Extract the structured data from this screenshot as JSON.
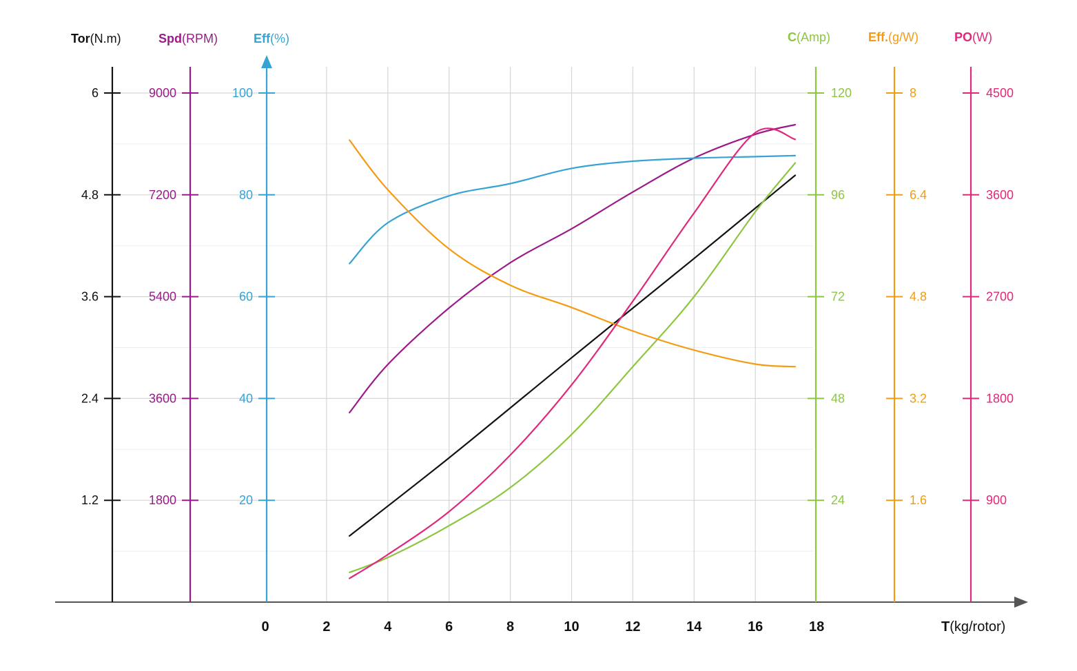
{
  "chart_data": {
    "type": "line",
    "x_axis": {
      "name": "T",
      "unit": "(kg/rotor)",
      "ticks": [
        "0",
        "2",
        "4",
        "6",
        "8",
        "10",
        "12",
        "14",
        "16",
        "18"
      ],
      "range": [
        0,
        18
      ]
    },
    "axes": [
      {
        "key": "tor",
        "name": "Tor",
        "unit": "(N.m)",
        "color": "#111111",
        "side": "left",
        "max": 6,
        "ticks": [
          "1.2",
          "2.4",
          "3.6",
          "4.8",
          "6"
        ]
      },
      {
        "key": "spd",
        "name": "Spd",
        "unit": "(RPM)",
        "color": "#9b1a8a",
        "side": "left",
        "max": 9000,
        "ticks": [
          "1800",
          "3600",
          "5400",
          "7200",
          "9000"
        ]
      },
      {
        "key": "effp",
        "name": "Eff",
        "unit": "(%)",
        "color": "#35a3d3",
        "side": "left",
        "max": 100,
        "ticks": [
          "20",
          "40",
          "60",
          "80",
          "100"
        ]
      },
      {
        "key": "cur",
        "name": "C",
        "unit": "(Amp)",
        "color": "#8cc63f",
        "side": "right",
        "max": 120,
        "ticks": [
          "24",
          "48",
          "72",
          "96",
          "120"
        ]
      },
      {
        "key": "effg",
        "name": "Eff.",
        "unit": "(g/W)",
        "color": "#f39c12",
        "side": "right",
        "max": 8,
        "ticks": [
          "1.6",
          "3.2",
          "4.8",
          "6.4",
          "8"
        ]
      },
      {
        "key": "po",
        "name": "PO",
        "unit": "(W)",
        "color": "#e0287a",
        "side": "right",
        "max": 4500,
        "ticks": [
          "900",
          "1800",
          "2700",
          "3600",
          "4500"
        ]
      }
    ],
    "series": [
      {
        "axis": "tor",
        "color": "#111111",
        "x": [
          2.75,
          6,
          10,
          14,
          17.3
        ],
        "y": [
          0.78,
          1.7,
          2.88,
          4.05,
          5.03
        ]
      },
      {
        "axis": "spd",
        "color": "#9b1a8a",
        "x": [
          2.75,
          4,
          6,
          8,
          10,
          12,
          14,
          16,
          17.3
        ],
        "y": [
          3350,
          4200,
          5200,
          6000,
          6600,
          7250,
          7850,
          8270,
          8440
        ]
      },
      {
        "axis": "effp",
        "color": "#35a3d3",
        "x": [
          2.75,
          4,
          6,
          8,
          10,
          12,
          14,
          16,
          17.3
        ],
        "y": [
          66.5,
          74.5,
          79.8,
          82.2,
          85.2,
          86.6,
          87.2,
          87.5,
          87.7
        ]
      },
      {
        "axis": "cur",
        "color": "#8cc63f",
        "x": [
          2.75,
          4,
          6,
          8,
          10,
          12,
          14,
          16,
          17.3
        ],
        "y": [
          7.0,
          10.5,
          18.0,
          27.0,
          39.5,
          55.5,
          72.0,
          92.0,
          103.5
        ]
      },
      {
        "axis": "effg",
        "color": "#f39c12",
        "x": [
          2.75,
          4,
          6,
          8,
          10,
          12,
          14,
          16,
          17.3
        ],
        "y": [
          7.26,
          6.48,
          5.55,
          4.98,
          4.63,
          4.26,
          3.96,
          3.74,
          3.7
        ]
      },
      {
        "axis": "po",
        "color": "#e0287a",
        "x": [
          2.75,
          4,
          6,
          8,
          10,
          12,
          14,
          16,
          17.3
        ],
        "y": [
          210,
          420,
          800,
          1300,
          1920,
          2660,
          3440,
          4150,
          4090
        ]
      }
    ]
  }
}
